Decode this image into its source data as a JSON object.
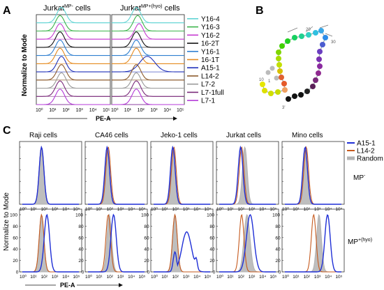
{
  "panels": {
    "a_label": "A",
    "b_label": "B",
    "c_label": "C"
  },
  "panel_a": {
    "titles": [
      "Jurkat",
      "Jurkat"
    ],
    "title_sups": [
      "MP-",
      "MP+(hyo)"
    ],
    "title_suffix": " cells",
    "ylabel": "Normalize to Mode",
    "xlabel": "PE-A",
    "tick_labels": [
      "10⁰",
      "10¹",
      "10²",
      "10³",
      "10⁴",
      "10⁵"
    ],
    "legend": [
      {
        "name": "Y16-4",
        "color": "#5fd3d3"
      },
      {
        "name": "Y16-3",
        "color": "#3cb44b"
      },
      {
        "name": "Y16-2",
        "color": "#c63ad1"
      },
      {
        "name": "16-2T",
        "color": "#111111"
      },
      {
        "name": "Y16-1",
        "color": "#2f7fd0"
      },
      {
        "name": "16-1T",
        "color": "#e58a1e"
      },
      {
        "name": "A15-1",
        "color": "#1e2fb8"
      },
      {
        "name": "L14-2",
        "color": "#8c5a2b"
      },
      {
        "name": "L7-2",
        "color": "#999999"
      },
      {
        "name": "L7-1full",
        "color": "#7a2a7a"
      },
      {
        "name": "L7-1",
        "color": "#b43ad8"
      }
    ]
  },
  "panel_b": {
    "labels": [
      "20",
      "30",
      "10",
      "1",
      "3'"
    ]
  },
  "panel_c": {
    "cell_lines": [
      "Raji cells",
      "CA46 cells",
      "Jeko-1 cells",
      "Jurkat cells",
      "Mino cells"
    ],
    "legend": [
      {
        "name": "A15-1",
        "color": "#1f2fd6"
      },
      {
        "name": "L14-2",
        "color": "#c65a1e"
      },
      {
        "name": "Random",
        "color": "#b3b3b3"
      }
    ],
    "row_labels": [
      "MP",
      "MP"
    ],
    "row_sups": [
      "-",
      "+(hyo)"
    ],
    "ylabel": "Normalize to Mode",
    "xlabel": "PE-A",
    "y_ticks": [
      "0",
      "20",
      "40",
      "60",
      "80",
      "100"
    ],
    "x_ticks": [
      "10⁰",
      "10¹",
      "10²",
      "10³",
      "10⁴",
      "10⁵"
    ]
  },
  "chart_data": [
    {
      "type": "area",
      "title": "Jurkat MP- cells / Jurkat MP+(hyo) cells",
      "xlabel": "PE-A",
      "ylabel": "Normalize to Mode",
      "x_scale": "log",
      "xlim": [
        1,
        100000
      ],
      "series": [
        {
          "name": "Y16-4",
          "peak_log10": [
            1.8,
            1.8
          ]
        },
        {
          "name": "Y16-3",
          "peak_log10": [
            1.7,
            1.9
          ]
        },
        {
          "name": "Y16-2",
          "peak_log10": [
            1.7,
            2.0
          ]
        },
        {
          "name": "16-2T",
          "peak_log10": [
            1.7,
            1.8
          ]
        },
        {
          "name": "Y16-1",
          "peak_log10": [
            1.7,
            1.8
          ]
        },
        {
          "name": "16-1T",
          "peak_log10": [
            1.7,
            1.8
          ]
        },
        {
          "name": "A15-1",
          "peak_log10": [
            1.8,
            2.6
          ]
        },
        {
          "name": "L14-2",
          "peak_log10": [
            1.8,
            1.8
          ]
        },
        {
          "name": "L7-2",
          "peak_log10": [
            1.8,
            1.8
          ]
        },
        {
          "name": "L7-1full",
          "peak_log10": [
            1.7,
            1.8
          ]
        },
        {
          "name": "L7-1",
          "peak_log10": [
            1.7,
            1.8
          ]
        }
      ]
    },
    {
      "type": "area",
      "xlabel": "PE-A",
      "ylabel": "Normalize to Mode",
      "x_scale": "log",
      "xlim": [
        1,
        100000
      ],
      "ylim": [
        0,
        100
      ],
      "series_names": [
        "A15-1",
        "L14-2",
        "Random"
      ],
      "peaks_log10": {
        "MP-": {
          "Raji cells": {
            "A15-1": 1.8,
            "L14-2": 1.8,
            "Random": 1.8
          },
          "CA46 cells": {
            "A15-1": 1.8,
            "L14-2": 1.9,
            "Random": 1.8
          },
          "Jeko-1 cells": {
            "A15-1": 1.8,
            "L14-2": 1.9,
            "Random": 1.8
          },
          "Jurkat cells": {
            "A15-1": 2.0,
            "L14-2": 2.1,
            "Random": 2.4
          },
          "Mino cells": {
            "A15-1": 1.9,
            "L14-2": 2.0,
            "Random": 1.9
          }
        },
        "MP+(hyo)": {
          "Raji cells": {
            "A15-1": 2.3,
            "L14-2": 1.8,
            "Random": 1.8
          },
          "CA46 cells": {
            "A15-1": 2.4,
            "L14-2": 1.9,
            "Random": 2.0
          },
          "Jeko-1 cells": {
            "A15-1": 3.1,
            "L14-2": 2.0,
            "Random": 2.0
          },
          "Jurkat cells": {
            "A15-1": 2.9,
            "L14-2": 2.1,
            "Random": 2.6
          },
          "Mino cells": {
            "A15-1": 4.0,
            "L14-2": 2.7,
            "Random": 3.2
          }
        }
      }
    }
  ]
}
